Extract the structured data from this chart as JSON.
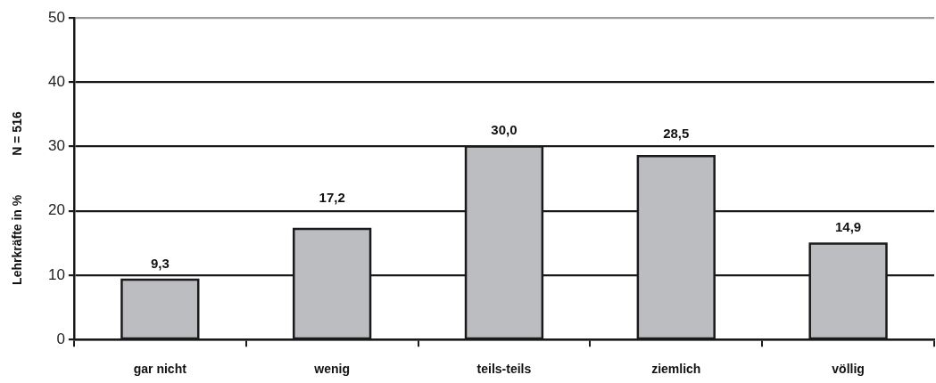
{
  "chart_data": {
    "type": "bar",
    "ylabel": "Lehrkräfte in %",
    "annotations": [
      "N = 516"
    ],
    "categories": [
      "gar nicht",
      "wenig",
      "teils-teils",
      "ziemlich",
      "völlig"
    ],
    "values": [
      9.3,
      17.2,
      30.0,
      28.5,
      14.9
    ],
    "value_labels": [
      "9,3",
      "17,2",
      "30,0",
      "28,5",
      "14,9"
    ],
    "color": "#bcbdc1",
    "ylim": [
      0,
      50
    ],
    "yticks": [
      0,
      10,
      20,
      30,
      40,
      50
    ],
    "grid": "y"
  }
}
